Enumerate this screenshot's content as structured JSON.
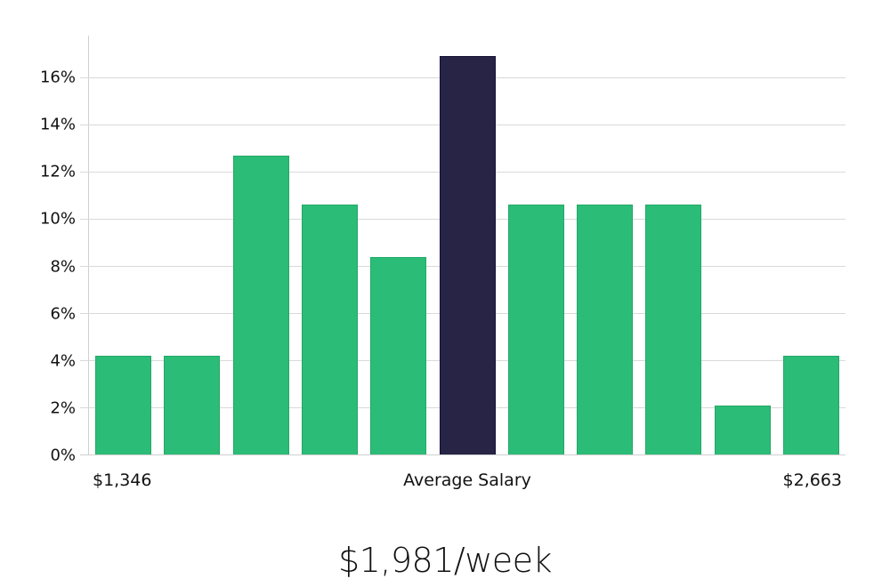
{
  "chart_data": {
    "type": "bar",
    "title": "",
    "xlabel": "Average Salary",
    "ylabel": "",
    "categories": [
      "bin1",
      "bin2",
      "bin3",
      "bin4",
      "bin5",
      "bin6",
      "bin7",
      "bin8",
      "bin9",
      "bin10",
      "bin11"
    ],
    "values": [
      4.2,
      4.2,
      12.7,
      10.6,
      8.4,
      16.9,
      10.6,
      10.6,
      10.6,
      2.1,
      4.2
    ],
    "highlight_index": 5,
    "ylim": [
      0,
      17.7
    ],
    "yticks": [
      "0%",
      "2%",
      "4%",
      "6%",
      "8%",
      "10%",
      "12%",
      "14%",
      "16%"
    ],
    "ytick_values": [
      0,
      2,
      4,
      6,
      8,
      10,
      12,
      14,
      16
    ],
    "x_range_labels": {
      "min": "$1,346",
      "max": "$2,663"
    },
    "grid": true,
    "legend": null,
    "colors": {
      "bar": "#2bbd77",
      "bar_border": "#22a866",
      "highlight": "#272445",
      "highlight_border": "#15133a",
      "grid": "#d9d9d9"
    }
  },
  "labels": {
    "min_salary": "$1,346",
    "max_salary": "$2,663",
    "axis_title": "Average Salary",
    "headline": "$1,981/week"
  }
}
